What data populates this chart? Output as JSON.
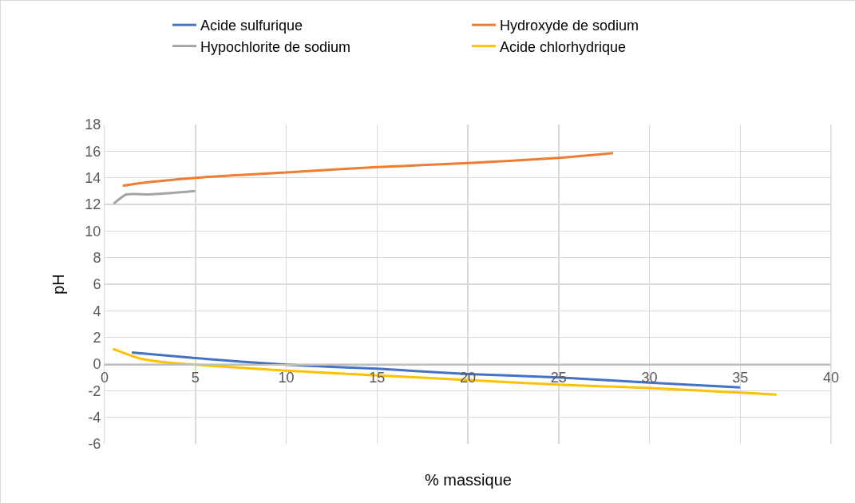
{
  "chart_data": {
    "type": "line",
    "xlabel": "% massique",
    "ylabel": "pH",
    "xlim": [
      0,
      40
    ],
    "xticks": [
      0,
      5,
      10,
      15,
      20,
      25,
      30,
      35,
      40
    ],
    "ylim": [
      -6,
      18
    ],
    "yticks": [
      -6,
      -4,
      -2,
      0,
      2,
      4,
      6,
      8,
      10,
      12,
      14,
      16,
      18
    ],
    "grid": true,
    "legend": "top",
    "marker": "none",
    "series": [
      {
        "name": "Acide sulfurique",
        "color": "#4472c4",
        "x": [
          1.5,
          5,
          10,
          15,
          20,
          25,
          30,
          35
        ],
        "values": [
          0.87,
          0.45,
          -0.05,
          -0.35,
          -0.75,
          -1.0,
          -1.4,
          -1.75
        ]
      },
      {
        "name": "Hydroxyde de sodium",
        "color": "#ed7d31",
        "x": [
          1,
          2,
          5,
          10,
          15,
          20,
          25,
          28
        ],
        "values": [
          13.4,
          13.6,
          14.0,
          14.4,
          14.8,
          15.1,
          15.5,
          15.85
        ]
      },
      {
        "name": "Hypochlorite de sodium",
        "color": "#a5a5a5",
        "x": [
          0.5,
          1.2,
          2.5,
          5
        ],
        "values": [
          12.05,
          12.75,
          12.75,
          13.0
        ]
      },
      {
        "name": "Acide chlorhydrique",
        "color": "#ffc000",
        "x": [
          0.45,
          2,
          3.5,
          5,
          10,
          15,
          20,
          25,
          30,
          35,
          37
        ],
        "values": [
          1.15,
          0.4,
          0.1,
          -0.05,
          -0.5,
          -0.85,
          -1.2,
          -1.55,
          -1.8,
          -2.15,
          -2.3
        ]
      }
    ]
  }
}
